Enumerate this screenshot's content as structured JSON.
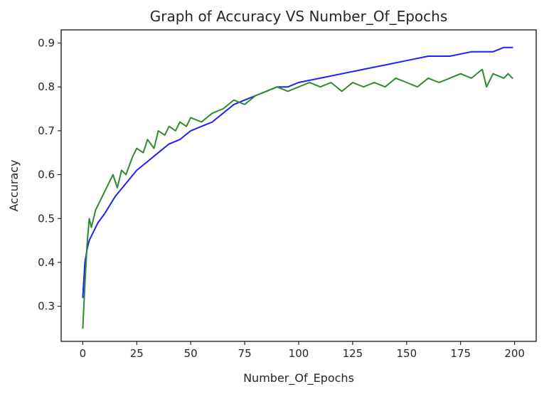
{
  "chart_data": {
    "type": "line",
    "title": "Graph of Accuracy VS Number_Of_Epochs",
    "xlabel": "Number_Of_Epochs",
    "ylabel": "Accuracy",
    "xlim": [
      -10,
      210
    ],
    "ylim": [
      0.22,
      0.93
    ],
    "xticks": [
      "0",
      "25",
      "50",
      "75",
      "100",
      "125",
      "150",
      "175",
      "200"
    ],
    "xtick_values": [
      0,
      25,
      50,
      75,
      100,
      125,
      150,
      175,
      200
    ],
    "yticks": [
      "0.3",
      "0.4",
      "0.5",
      "0.6",
      "0.7",
      "0.8",
      "0.9"
    ],
    "ytick_values": [
      0.3,
      0.4,
      0.5,
      0.6,
      0.7,
      0.8,
      0.9
    ],
    "grid": false,
    "series": [
      {
        "color": "#1f1fff",
        "x": [
          0,
          1,
          2,
          3,
          5,
          7,
          10,
          15,
          20,
          25,
          30,
          35,
          40,
          45,
          50,
          55,
          60,
          65,
          70,
          75,
          80,
          85,
          90,
          95,
          100,
          110,
          120,
          130,
          140,
          150,
          160,
          170,
          180,
          190,
          195,
          199
        ],
        "y": [
          0.32,
          0.4,
          0.43,
          0.45,
          0.47,
          0.49,
          0.51,
          0.55,
          0.58,
          0.61,
          0.63,
          0.65,
          0.67,
          0.68,
          0.7,
          0.71,
          0.72,
          0.74,
          0.76,
          0.77,
          0.78,
          0.79,
          0.8,
          0.8,
          0.81,
          0.82,
          0.83,
          0.84,
          0.85,
          0.86,
          0.87,
          0.87,
          0.88,
          0.88,
          0.89,
          0.89
        ]
      },
      {
        "color": "#2e8b2e",
        "x": [
          0,
          1,
          2,
          3,
          4,
          5,
          6,
          8,
          10,
          12,
          14,
          16,
          18,
          20,
          23,
          25,
          28,
          30,
          33,
          35,
          38,
          40,
          43,
          45,
          48,
          50,
          55,
          60,
          65,
          70,
          75,
          80,
          85,
          90,
          95,
          100,
          105,
          110,
          115,
          120,
          125,
          130,
          135,
          140,
          145,
          150,
          155,
          160,
          165,
          170,
          175,
          180,
          185,
          187,
          190,
          195,
          197,
          199
        ],
        "y": [
          0.25,
          0.35,
          0.44,
          0.5,
          0.48,
          0.5,
          0.52,
          0.54,
          0.56,
          0.58,
          0.6,
          0.57,
          0.61,
          0.6,
          0.64,
          0.66,
          0.65,
          0.68,
          0.66,
          0.7,
          0.69,
          0.71,
          0.7,
          0.72,
          0.71,
          0.73,
          0.72,
          0.74,
          0.75,
          0.77,
          0.76,
          0.78,
          0.79,
          0.8,
          0.79,
          0.8,
          0.81,
          0.8,
          0.81,
          0.79,
          0.81,
          0.8,
          0.81,
          0.8,
          0.82,
          0.81,
          0.8,
          0.82,
          0.81,
          0.82,
          0.83,
          0.82,
          0.84,
          0.8,
          0.83,
          0.82,
          0.83,
          0.82
        ]
      }
    ]
  }
}
